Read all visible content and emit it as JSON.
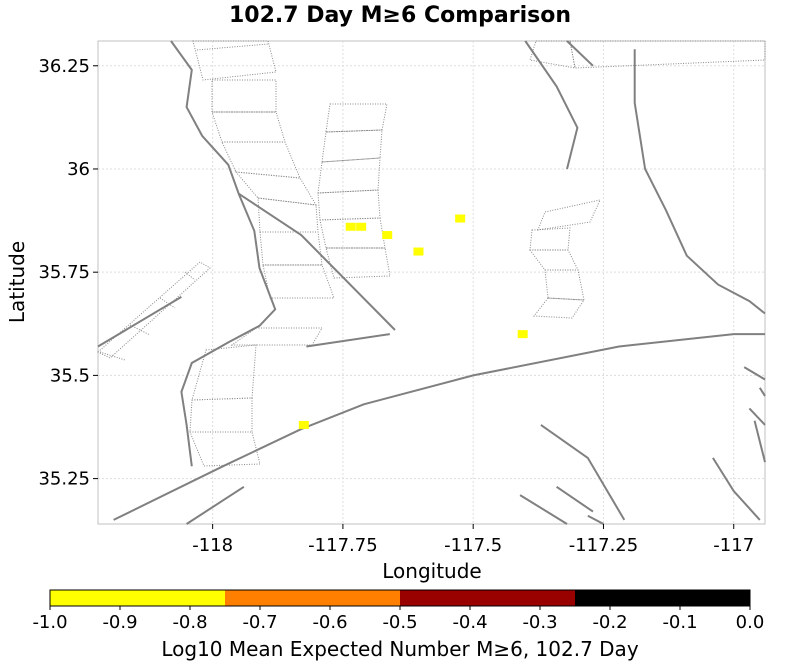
{
  "chart_data": {
    "type": "heatmap",
    "title": "102.7 Day M≥6 Comparison",
    "xlabel": "Longitude",
    "ylabel": "Latitude",
    "xlim": [
      -118.22,
      -116.94
    ],
    "ylim": [
      35.14,
      36.31
    ],
    "x_ticks": [
      {
        "value": -118,
        "label": "-118"
      },
      {
        "value": -117.75,
        "label": "-117.75"
      },
      {
        "value": -117.5,
        "label": "-117.5"
      },
      {
        "value": -117.25,
        "label": "-117.25"
      },
      {
        "value": -117,
        "label": "-117"
      }
    ],
    "y_ticks": [
      {
        "value": 35.25,
        "label": "35.25"
      },
      {
        "value": 35.5,
        "label": "35.5"
      },
      {
        "value": 35.75,
        "label": "35.75"
      },
      {
        "value": 36,
        "label": "36"
      },
      {
        "value": 36.25,
        "label": "36.25"
      }
    ],
    "grid": true,
    "cells": [
      {
        "lon": -117.735,
        "lat": 35.86,
        "value": -0.95
      },
      {
        "lon": -117.715,
        "lat": 35.86,
        "value": -0.95
      },
      {
        "lon": -117.665,
        "lat": 35.84,
        "value": -0.95
      },
      {
        "lon": -117.605,
        "lat": 35.8,
        "value": -0.95
      },
      {
        "lon": -117.525,
        "lat": 35.88,
        "value": -0.95
      },
      {
        "lon": -117.405,
        "lat": 35.6,
        "value": -0.95
      },
      {
        "lon": -117.825,
        "lat": 35.38,
        "value": -0.95
      }
    ],
    "colorbar": {
      "label": "Log10 Mean Expected Number M≥6, 102.7 Day",
      "range": [
        -1.0,
        0.0
      ],
      "bins": [
        {
          "from": -1.0,
          "to": -0.75,
          "color": "#ffff00"
        },
        {
          "from": -0.75,
          "to": -0.5,
          "color": "#ff7f00"
        },
        {
          "from": -0.5,
          "to": -0.25,
          "color": "#990000"
        },
        {
          "from": -0.25,
          "to": 0.0,
          "color": "#000000"
        }
      ],
      "ticks": [
        {
          "value": -1.0,
          "label": "-1.0"
        },
        {
          "value": -0.9,
          "label": "-0.9"
        },
        {
          "value": -0.8,
          "label": "-0.8"
        },
        {
          "value": -0.7,
          "label": "-0.7"
        },
        {
          "value": -0.6,
          "label": "-0.6"
        },
        {
          "value": -0.5,
          "label": "-0.5"
        },
        {
          "value": -0.4,
          "label": "-0.4"
        },
        {
          "value": -0.3,
          "label": "-0.3"
        },
        {
          "value": -0.2,
          "label": "-0.2"
        },
        {
          "value": -0.1,
          "label": "-0.1"
        },
        {
          "value": 0.0,
          "label": "0.0"
        }
      ]
    },
    "fault_traces": [
      [
        [
          -118.22,
          35.57
        ],
        [
          -118.06,
          35.69
        ]
      ],
      [
        [
          -117.94,
          35.23
        ],
        [
          -118.05,
          35.14
        ]
      ],
      [
        [
          -117.82,
          35.57
        ],
        [
          -117.66,
          35.6
        ]
      ],
      [
        [
          -118.19,
          35.15
        ],
        [
          -117.98,
          35.28
        ],
        [
          -117.83,
          35.37
        ],
        [
          -117.71,
          35.43
        ],
        [
          -117.5,
          35.5
        ],
        [
          -117.22,
          35.57
        ],
        [
          -117.0,
          35.6
        ],
        [
          -116.94,
          35.6
        ]
      ],
      [
        [
          -118.08,
          36.31
        ],
        [
          -118.04,
          36.24
        ],
        [
          -118.05,
          36.15
        ],
        [
          -118.02,
          36.08
        ],
        [
          -117.97,
          36.01
        ],
        [
          -117.95,
          35.94
        ],
        [
          -117.92,
          35.85
        ],
        [
          -117.91,
          35.76
        ],
        [
          -117.88,
          35.66
        ],
        [
          -117.91,
          35.62
        ],
        [
          -117.97,
          35.58
        ],
        [
          -118.04,
          35.53
        ],
        [
          -118.06,
          35.46
        ],
        [
          -118.05,
          35.38
        ],
        [
          -118.04,
          35.28
        ]
      ],
      [
        [
          -117.95,
          35.94
        ],
        [
          -117.83,
          35.84
        ],
        [
          -117.65,
          35.61
        ]
      ],
      [
        [
          -117.4,
          36.31
        ],
        [
          -117.34,
          36.2
        ],
        [
          -117.3,
          36.1
        ],
        [
          -117.32,
          36.0
        ]
      ],
      [
        [
          -117.19,
          36.29
        ],
        [
          -117.19,
          36.16
        ],
        [
          -117.17,
          36.0
        ],
        [
          -117.13,
          35.9
        ],
        [
          -117.09,
          35.79
        ],
        [
          -117.03,
          35.72
        ],
        [
          -116.97,
          35.68
        ],
        [
          -116.94,
          35.65
        ]
      ],
      [
        [
          -117.32,
          36.31
        ],
        [
          -117.27,
          36.25
        ]
      ],
      [
        [
          -116.98,
          35.52
        ],
        [
          -116.94,
          35.49
        ]
      ],
      [
        [
          -116.95,
          35.47
        ],
        [
          -116.94,
          35.45
        ]
      ],
      [
        [
          -116.97,
          35.42
        ],
        [
          -116.94,
          35.38
        ]
      ],
      [
        [
          -117.37,
          35.38
        ],
        [
          -117.28,
          35.3
        ],
        [
          -117.21,
          35.15
        ]
      ],
      [
        [
          -117.34,
          35.23
        ],
        [
          -117.27,
          35.17
        ]
      ],
      [
        [
          -117.28,
          35.16
        ],
        [
          -117.25,
          35.14
        ]
      ],
      [
        [
          -116.96,
          35.39
        ],
        [
          -116.94,
          35.29
        ]
      ],
      [
        [
          -117.04,
          35.3
        ],
        [
          -117.0,
          35.22
        ],
        [
          -116.95,
          35.15
        ]
      ],
      [
        [
          -117.41,
          35.21
        ],
        [
          -117.32,
          35.14
        ]
      ]
    ]
  }
}
